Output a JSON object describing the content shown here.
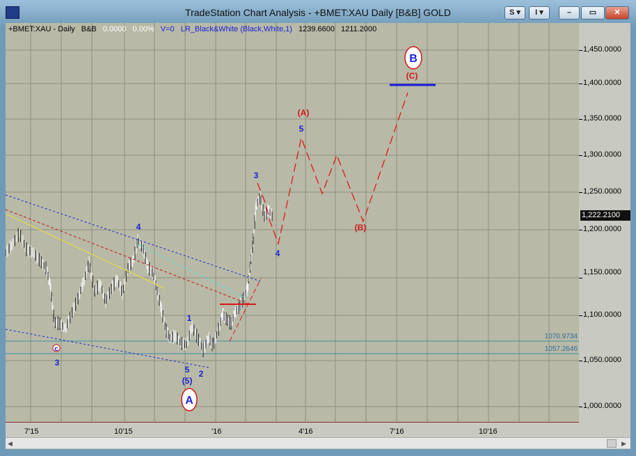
{
  "window": {
    "title": "TradeStation Chart Analysis - +BMET:XAU Daily [B&B] GOLD",
    "buttons": {
      "s_label": "S ▾",
      "i_label": "I ▾",
      "min_label": "–",
      "max_label": "▭",
      "close_label": "✕"
    }
  },
  "info_bar": {
    "symbol": "+BMET:XAU - Daily",
    "style": "B&B",
    "change": "0.0000",
    "change_pct": "0.00%",
    "volume": "V=0",
    "indicator": "LR_Black&White (Black,White,1)",
    "high": "1239.6600",
    "low": "1211.2000"
  },
  "y_axis": {
    "ticks": [
      "1,450.0000",
      "1,400.0000",
      "1,350.0000",
      "1,300.0000",
      "1,250.0000",
      "1,200.0000",
      "1,150.0000",
      "1,100.0000",
      "1,050.0000",
      "1,000.0000"
    ],
    "last_price": "1,222.2100"
  },
  "x_axis": {
    "ticks": [
      "7'15",
      "10'15",
      "'16",
      "4'16",
      "7'16",
      "10'16"
    ]
  },
  "levels": {
    "support1": "1070.9734",
    "support2": "1057.2646"
  },
  "wave_labels": {
    "big_b": "B",
    "big_a": "A",
    "c_minor": "c",
    "three_minor": "3",
    "four_left": "4",
    "one": "1",
    "five_sm": "5",
    "five_paren": "(5)",
    "two": "2",
    "three_top": "3",
    "four_right": "4",
    "five_proj": "5",
    "a_proj": "(A)",
    "b_proj": "(B)",
    "c_proj": "(C)"
  },
  "colors": {
    "plot_bg": "#b8b9a7",
    "blue_label": "#1b22d8",
    "red_label": "#d01818",
    "red_projection": "#e01818",
    "channel_blue": "#1a2bcf",
    "channel_red": "#c41818",
    "line_yellow": "#e8e23a",
    "line_cyan": "#5fe0e0",
    "target_line": "#1a1ad8"
  }
}
